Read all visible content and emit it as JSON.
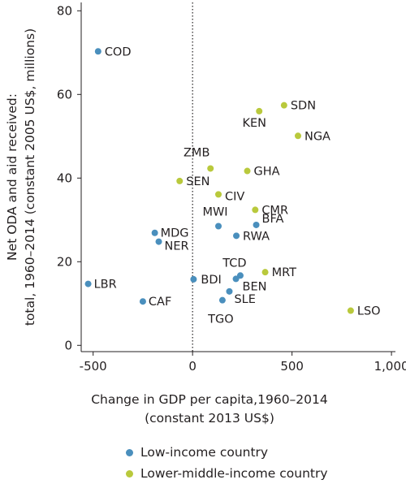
{
  "chart_data": {
    "type": "scatter",
    "xlabel_lines": [
      "Change in GDP per capita,1960–2014",
      "(constant 2013 US$)"
    ],
    "ylabel_lines": [
      "Net ODA and aid received:",
      "total, 1960–2014 (constant 2005 US$, millions)"
    ],
    "xlim": [
      -560,
      1020
    ],
    "ylim": [
      -1.5,
      82
    ],
    "xticks": [
      -500,
      0,
      500,
      1000
    ],
    "xtick_labels": [
      "-500",
      "0",
      "500",
      "1,000"
    ],
    "yticks": [
      0,
      20,
      40,
      60,
      80
    ],
    "ytick_labels": [
      "0",
      "20",
      "40",
      "60",
      "80"
    ],
    "reference_line": {
      "x": 0,
      "style": "dotted"
    },
    "grid": false,
    "legend_position": "bottom",
    "series": [
      {
        "name": "Low-income country",
        "color": "#4a8fbd",
        "points": [
          {
            "label": "COD",
            "x": -475,
            "y": 70.3
          },
          {
            "label": "MDG",
            "x": -190,
            "y": 26.9
          },
          {
            "label": "NER",
            "x": -170,
            "y": 24.8
          },
          {
            "label": "LBR",
            "x": -525,
            "y": 14.7
          },
          {
            "label": "CAF",
            "x": -250,
            "y": 10.5
          },
          {
            "label": "BDI",
            "x": 5,
            "y": 15.8
          },
          {
            "label": "MWI",
            "x": 130,
            "y": 28.5
          },
          {
            "label": "RWA",
            "x": 220,
            "y": 26.2
          },
          {
            "label": "BFA",
            "x": 320,
            "y": 28.8
          },
          {
            "label": "TCD",
            "x": 240,
            "y": 16.7
          },
          {
            "label": "BEN",
            "x": 218,
            "y": 15.9
          },
          {
            "label": "SLE",
            "x": 185,
            "y": 12.9
          },
          {
            "label": "TGO",
            "x": 150,
            "y": 10.8
          }
        ]
      },
      {
        "name": "Lower-middle-income country",
        "color": "#b9c93c",
        "points": [
          {
            "label": "SDN",
            "x": 460,
            "y": 57.4
          },
          {
            "label": "KEN",
            "x": 335,
            "y": 56.0
          },
          {
            "label": "NGA",
            "x": 530,
            "y": 50.1
          },
          {
            "label": "ZMB",
            "x": 90,
            "y": 42.3
          },
          {
            "label": "GHA",
            "x": 275,
            "y": 41.7
          },
          {
            "label": "SEN",
            "x": -65,
            "y": 39.3
          },
          {
            "label": "CIV",
            "x": 130,
            "y": 36.1
          },
          {
            "label": "CMR",
            "x": 315,
            "y": 32.4
          },
          {
            "label": "MRT",
            "x": 365,
            "y": 17.5
          },
          {
            "label": "LSO",
            "x": 795,
            "y": 8.3
          }
        ]
      }
    ]
  }
}
